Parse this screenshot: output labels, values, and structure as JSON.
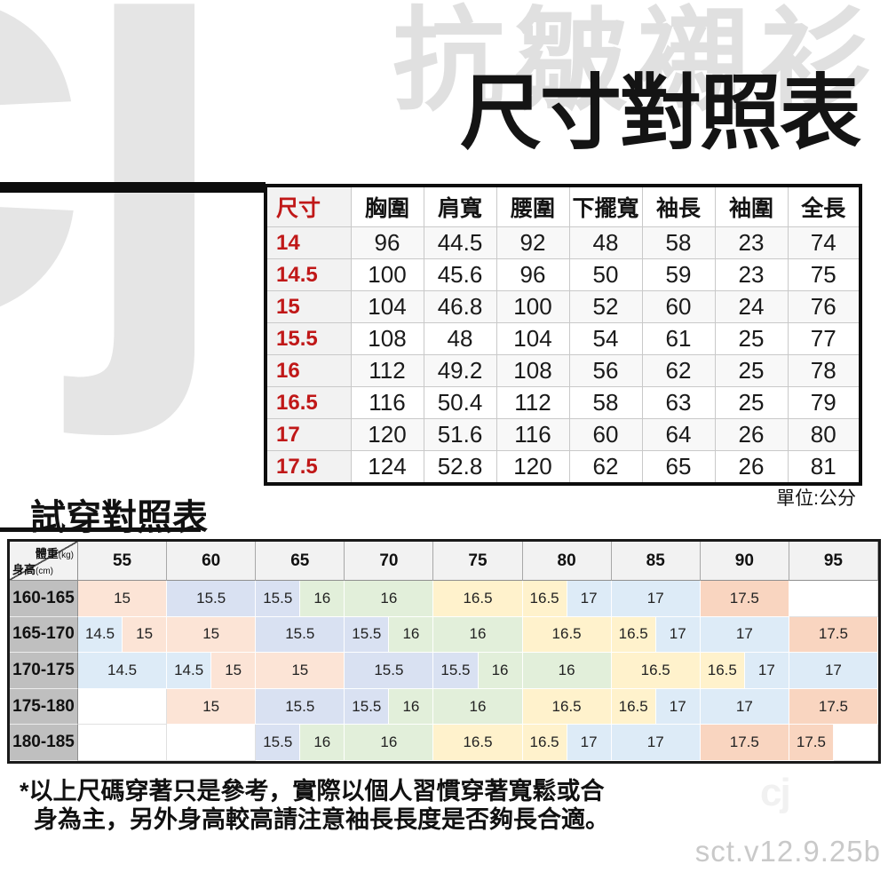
{
  "watermark": {
    "logo_text": "cj",
    "brand_title": "抗皺襯衫",
    "corner_mark": "cj"
  },
  "header": {
    "title": "尺寸對照表"
  },
  "size_table": {
    "columns": [
      "尺寸",
      "胸圍",
      "肩寬",
      "腰圍",
      "下擺寬",
      "袖長",
      "袖圍",
      "全長"
    ],
    "rows": [
      {
        "size": "14",
        "values": [
          "96",
          "44.5",
          "92",
          "48",
          "58",
          "23",
          "74"
        ]
      },
      {
        "size": "14.5",
        "values": [
          "100",
          "45.6",
          "96",
          "50",
          "59",
          "23",
          "75"
        ]
      },
      {
        "size": "15",
        "values": [
          "104",
          "46.8",
          "100",
          "52",
          "60",
          "24",
          "76"
        ]
      },
      {
        "size": "15.5",
        "values": [
          "108",
          "48",
          "104",
          "54",
          "61",
          "25",
          "77"
        ]
      },
      {
        "size": "16",
        "values": [
          "112",
          "49.2",
          "108",
          "56",
          "62",
          "25",
          "78"
        ]
      },
      {
        "size": "16.5",
        "values": [
          "116",
          "50.4",
          "112",
          "58",
          "63",
          "25",
          "79"
        ]
      },
      {
        "size": "17",
        "values": [
          "120",
          "51.6",
          "116",
          "60",
          "64",
          "26",
          "80"
        ]
      },
      {
        "size": "17.5",
        "values": [
          "124",
          "52.8",
          "120",
          "62",
          "65",
          "26",
          "81"
        ]
      }
    ],
    "unit_note": "單位:公分"
  },
  "fit_table": {
    "title": "試穿對照表",
    "corner": {
      "weight_label": "體重",
      "weight_unit": "(kg)",
      "height_label": "身高",
      "height_unit": "(cm)"
    },
    "weight_columns": [
      "55",
      "60",
      "65",
      "70",
      "75",
      "80",
      "85",
      "90",
      "95"
    ],
    "rows": [
      {
        "height": "160-165",
        "cells": [
          [
            "15",
            "s15",
            2
          ],
          [
            "15.5",
            "s15_5",
            2
          ],
          [
            "15.5",
            "s15_5",
            1
          ],
          [
            "16",
            "s16",
            1
          ],
          [
            "16",
            "s16",
            2
          ],
          [
            "16.5",
            "s16_5",
            2
          ],
          [
            "16.5",
            "s16_5",
            1
          ],
          [
            "17",
            "s17",
            1
          ],
          [
            "17",
            "s17",
            2
          ],
          [
            "17.5",
            "s17_5",
            2
          ],
          [
            "",
            "empty",
            2
          ]
        ]
      },
      {
        "height": "165-170",
        "cells": [
          [
            "14.5",
            "s14_5",
            1
          ],
          [
            "15",
            "s15",
            1
          ],
          [
            "15",
            "s15",
            2
          ],
          [
            "15.5",
            "s15_5",
            2
          ],
          [
            "15.5",
            "s15_5",
            1
          ],
          [
            "16",
            "s16",
            1
          ],
          [
            "16",
            "s16",
            2
          ],
          [
            "16.5",
            "s16_5",
            2
          ],
          [
            "16.5",
            "s16_5",
            1
          ],
          [
            "17",
            "s17",
            1
          ],
          [
            "17",
            "s17",
            2
          ],
          [
            "17.5",
            "s17_5",
            2
          ]
        ]
      },
      {
        "height": "170-175",
        "cells": [
          [
            "14.5",
            "s14_5",
            2
          ],
          [
            "14.5",
            "s14_5",
            1
          ],
          [
            "15",
            "s15",
            1
          ],
          [
            "15",
            "s15",
            2
          ],
          [
            "15.5",
            "s15_5",
            2
          ],
          [
            "15.5",
            "s15_5",
            1
          ],
          [
            "16",
            "s16",
            1
          ],
          [
            "16",
            "s16",
            2
          ],
          [
            "16.5",
            "s16_5",
            2
          ],
          [
            "16.5",
            "s16_5",
            1
          ],
          [
            "17",
            "s17",
            1
          ],
          [
            "17",
            "s17",
            2
          ]
        ]
      },
      {
        "height": "175-180",
        "cells": [
          [
            "",
            "empty",
            2
          ],
          [
            "15",
            "s15",
            2
          ],
          [
            "15.5",
            "s15_5",
            2
          ],
          [
            "15.5",
            "s15_5",
            1
          ],
          [
            "16",
            "s16",
            1
          ],
          [
            "16",
            "s16",
            2
          ],
          [
            "16.5",
            "s16_5",
            2
          ],
          [
            "16.5",
            "s16_5",
            1
          ],
          [
            "17",
            "s17",
            1
          ],
          [
            "17",
            "s17",
            2
          ],
          [
            "17.5",
            "s17_5",
            2
          ]
        ]
      },
      {
        "height": "180-185",
        "cells": [
          [
            "",
            "empty",
            2
          ],
          [
            "",
            "empty",
            2
          ],
          [
            "15.5",
            "s15_5",
            1
          ],
          [
            "16",
            "s16",
            1
          ],
          [
            "16",
            "s16",
            2
          ],
          [
            "16.5",
            "s16_5",
            2
          ],
          [
            "16.5",
            "s16_5",
            1
          ],
          [
            "17",
            "s17",
            1
          ],
          [
            "17",
            "s17",
            2
          ],
          [
            "17.5",
            "s17_5",
            2
          ],
          [
            "17.5",
            "s17_5",
            1
          ],
          [
            "",
            "empty",
            1
          ]
        ]
      }
    ]
  },
  "colors": {
    "s14_5": "#DDEBF7",
    "s15": "#FCE4D6",
    "s15_5": "#D9E1F2",
    "s16": "#E2EFDA",
    "s16_5": "#FFF2CC",
    "s17": "#DDEBF7",
    "s17_5": "#F9D5C0",
    "empty": "#FFFFFF",
    "accent_red": "#C01818",
    "height_header_bg": "#BFBFBF",
    "weight_header_bg": "#F2F2F2"
  },
  "footnote": {
    "line1": "*以上尺碼穿著只是參考，實際以個人習慣穿著寬鬆或合",
    "line2": "身為主，另外身高較高請注意袖長長度是否夠長合適。"
  },
  "version_text": "sct.v12.9.25b"
}
